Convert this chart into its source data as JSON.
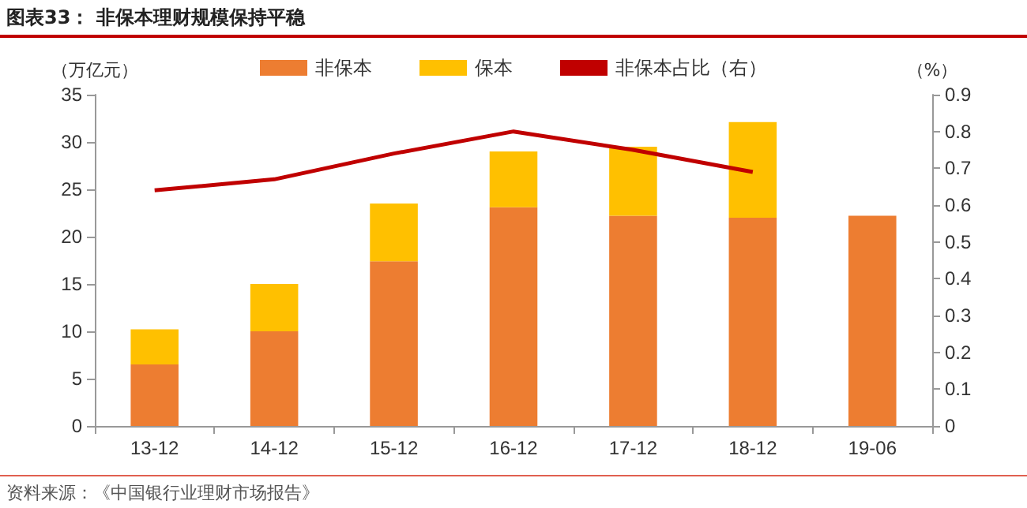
{
  "chart_data": {
    "type": "bar",
    "title": "图表33：  非保本理财规模保持平稳",
    "ylabel": "（万亿元）",
    "y2label": "（%）",
    "annotations": [
      "资料来源：《中国银行业理财市场报告》"
    ],
    "categories": [
      "13-12",
      "14-12",
      "15-12",
      "16-12",
      "17-12",
      "18-12",
      "19-06"
    ],
    "stacked": true,
    "series": [
      {
        "name": "非保本",
        "color": "#ed7d31",
        "values": [
          6.5,
          10.0,
          17.4,
          23.1,
          22.2,
          22.0,
          22.2
        ]
      },
      {
        "name": "保本",
        "color": "#ffc000",
        "values": [
          3.7,
          5.0,
          6.1,
          5.9,
          7.3,
          10.1,
          null
        ]
      },
      {
        "name": "非保本占比（右）",
        "type": "line",
        "axis": "y2",
        "color": "#c00000",
        "values": [
          0.64,
          0.67,
          0.74,
          0.8,
          0.75,
          0.69,
          null
        ]
      }
    ],
    "ylim": [
      0,
      35
    ],
    "yticks": [
      0,
      5,
      10,
      15,
      20,
      25,
      30,
      35
    ],
    "y2lim": [
      0,
      0.9
    ],
    "y2ticks": [
      0,
      0.1,
      0.2,
      0.3,
      0.4,
      0.5,
      0.6,
      0.7,
      0.8,
      0.9
    ],
    "grid": false,
    "legend": "top",
    "marker": "none"
  }
}
